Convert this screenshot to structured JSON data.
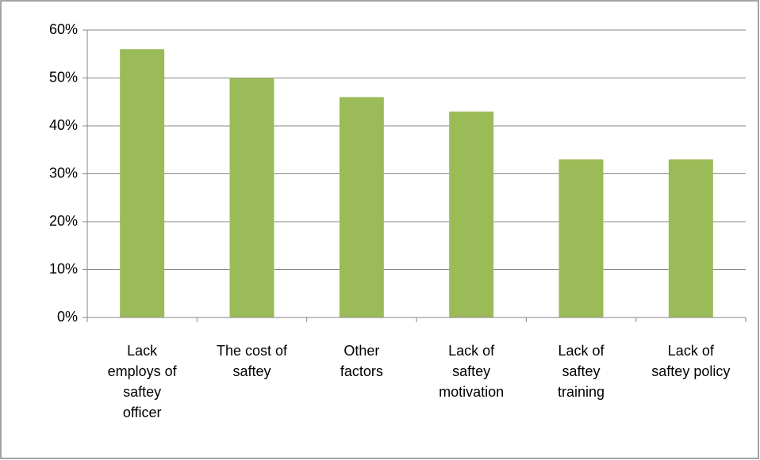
{
  "chart_data": {
    "type": "bar",
    "categories": [
      "Lack\nemploys of\nsaftey\nofficer",
      "The cost of\nsaftey",
      "Other\nfactors",
      "Lack of\nsaftey\nmotivation",
      "Lack of\nsaftey\ntraining",
      "Lack of\nsaftey policy"
    ],
    "values": [
      56,
      50,
      46,
      43,
      33,
      33
    ],
    "color": "#9bbb59",
    "ylim": [
      0,
      60
    ],
    "yticks": [
      {
        "value": 0,
        "label": "0%"
      },
      {
        "value": 10,
        "label": "10%"
      },
      {
        "value": 20,
        "label": "20%"
      },
      {
        "value": 30,
        "label": "30%"
      },
      {
        "value": 40,
        "label": "40%"
      },
      {
        "value": 50,
        "label": "50%"
      },
      {
        "value": 60,
        "label": "60%"
      }
    ],
    "grid": true
  }
}
